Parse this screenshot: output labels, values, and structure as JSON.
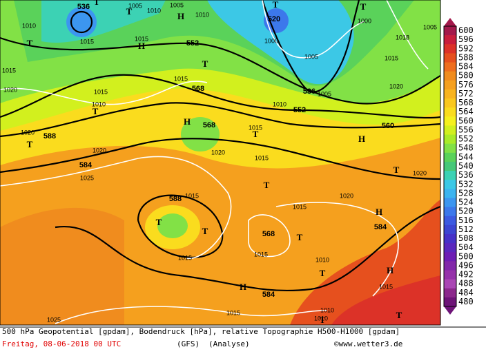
{
  "map": {
    "geopotential_labels": [
      536,
      520,
      552,
      568,
      536,
      552,
      568,
      588,
      560,
      584,
      588,
      568,
      584,
      584
    ],
    "pressure_labels": [
      1010,
      1015,
      1005,
      1010,
      1005,
      1010,
      1015,
      1015,
      1020,
      1015,
      1010,
      1015,
      1020,
      1020,
      1025,
      1015,
      1015,
      1020,
      1015,
      1015,
      1015,
      1020,
      1020,
      1010,
      1015,
      1015,
      1025,
      1010,
      1010,
      1005,
      1000,
      1000,
      1005,
      1015,
      1020,
      1018,
      1015,
      1005,
      1010
    ],
    "markers": [
      "T",
      "T",
      "H",
      "T",
      "H",
      "T",
      "T",
      "H",
      "T",
      "T",
      "H",
      "T",
      "T",
      "H",
      "T",
      "T",
      "T",
      "H",
      "T",
      "H",
      "T",
      "T",
      "T",
      "T"
    ]
  },
  "colorbar": {
    "labels": [
      600,
      596,
      592,
      588,
      584,
      580,
      576,
      572,
      568,
      564,
      560,
      556,
      552,
      548,
      544,
      540,
      536,
      532,
      528,
      524,
      520,
      516,
      512,
      508,
      504,
      500,
      496,
      492,
      488,
      484,
      480
    ],
    "colors": [
      "#a3194b",
      "#c81e3c",
      "#dc3228",
      "#e6501e",
      "#ee6e1e",
      "#f08c1e",
      "#f5a01e",
      "#f8b41e",
      "#fac81e",
      "#fadc1e",
      "#f5f01e",
      "#d2f01e",
      "#aaeb28",
      "#82e146",
      "#5ad25a",
      "#46c878",
      "#3cd2b4",
      "#3cc8e6",
      "#3cb4f0",
      "#3c96f0",
      "#3c78eb",
      "#3c5ae1",
      "#3c46d2",
      "#4632c8",
      "#5a28be",
      "#6e1eb4",
      "#8228aa",
      "#9632aa",
      "#aa46b4",
      "#8c288c",
      "#6e1478"
    ]
  },
  "footer": {
    "description": "500 hPa Geopotential [gpdam], Bodendruck [hPa], relative Topographie H500-H1000 [gpdam]",
    "date": "Freitag, 08-06-2018  00 UTC",
    "model": "(GFS)",
    "analysis": "(Analyse)",
    "copyright": "©www.wetter3.de"
  }
}
